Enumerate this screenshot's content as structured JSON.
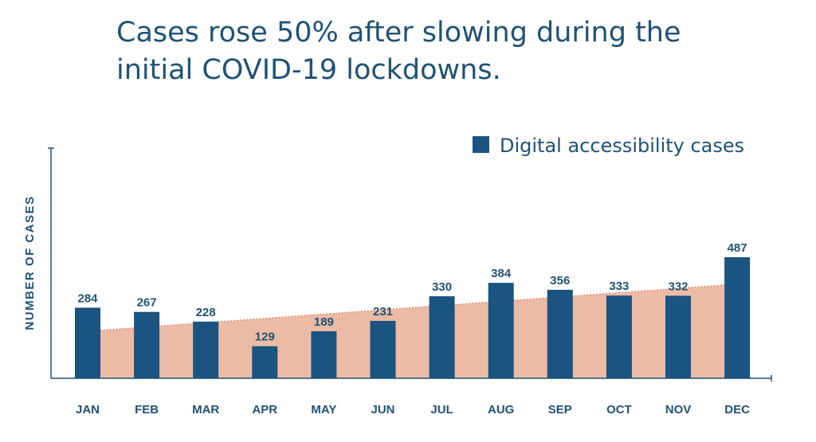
{
  "chart_data": {
    "type": "bar",
    "title": "Cases rose 50% after slowing during the initial COVID-19 lockdowns.",
    "xlabel": "",
    "ylabel": "NUMBER OF CASES",
    "categories": [
      "JAN",
      "FEB",
      "MAR",
      "APR",
      "MAY",
      "JUN",
      "JUL",
      "AUG",
      "SEP",
      "OCT",
      "NOV",
      "DEC"
    ],
    "series": [
      {
        "name": "Digital accessibility cases",
        "values": [
          284,
          267,
          228,
          129,
          189,
          231,
          330,
          384,
          356,
          333,
          332,
          487
        ]
      }
    ],
    "trend": {
      "type": "area",
      "start_value": 193,
      "end_value": 375
    },
    "ylim": [
      0,
      900
    ],
    "grid": false,
    "legend_position": "top-right",
    "colors": {
      "bar": "#1b5480",
      "trend_fill": "#ecbba6",
      "trend_line": "#e07a64",
      "axis": "#1f5273",
      "text": "#1f5273"
    }
  }
}
